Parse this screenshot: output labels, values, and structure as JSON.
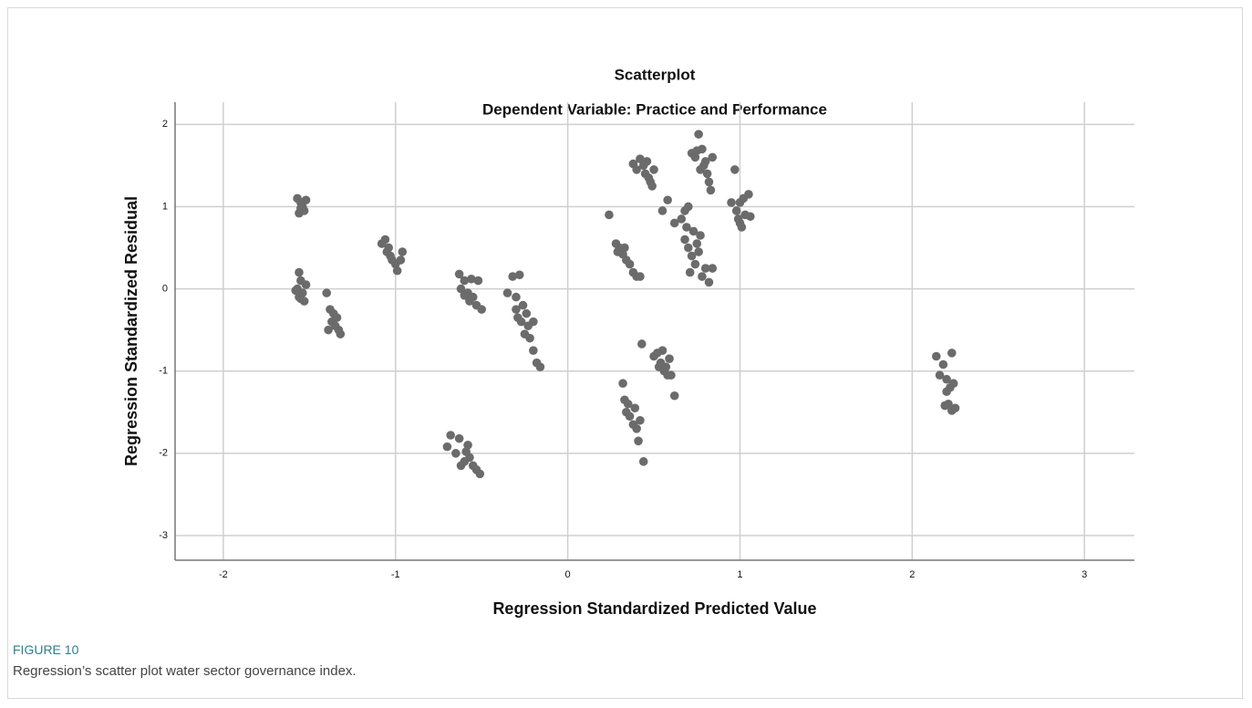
{
  "chart_data": {
    "type": "scatter",
    "title": "Scatterplot",
    "subtitle": "Dependent Variable: Practice and Performance",
    "xlabel": "Regression Standardized Predicted Value",
    "ylabel": "Regression Standardized Residual",
    "color": "#6b6b6b",
    "grid": true,
    "xlim": [
      -2.28,
      3.29
    ],
    "ylim": [
      -3.3,
      2.27
    ],
    "xticks": [
      -2,
      -1,
      0,
      1,
      2,
      3
    ],
    "yticks": [
      -3,
      -2,
      -1,
      0,
      1,
      2
    ],
    "x": [
      -1.57,
      -1.55,
      -1.54,
      -1.53,
      -1.56,
      -1.52,
      -1.55,
      -1.56,
      -1.55,
      -1.57,
      -1.54,
      -1.56,
      -1.53,
      -1.58,
      -1.52,
      -1.55,
      -1.4,
      -1.38,
      -1.36,
      -1.37,
      -1.35,
      -1.33,
      -1.32,
      -1.39,
      -1.34,
      -1.08,
      -1.06,
      -1.04,
      -1.03,
      -1.02,
      -1.0,
      -0.99,
      -0.97,
      -0.96,
      -1.05,
      -0.63,
      -0.6,
      -0.62,
      -0.58,
      -0.56,
      -0.55,
      -0.53,
      -0.52,
      -0.5,
      -0.57,
      -0.6,
      -0.35,
      -0.32,
      -0.3,
      -0.28,
      -0.3,
      -0.27,
      -0.25,
      -0.23,
      -0.22,
      -0.2,
      -0.18,
      -0.16,
      -0.2,
      -0.26,
      -0.29,
      -0.24,
      -0.7,
      -0.68,
      -0.65,
      -0.63,
      -0.6,
      -0.58,
      -0.57,
      -0.55,
      -0.53,
      -0.51,
      -0.62,
      -0.59,
      0.24,
      0.28,
      0.3,
      0.32,
      0.34,
      0.36,
      0.38,
      0.4,
      0.42,
      0.29,
      0.33,
      0.38,
      0.4,
      0.42,
      0.44,
      0.45,
      0.47,
      0.48,
      0.49,
      0.5,
      0.46,
      0.55,
      0.58,
      0.62,
      0.66,
      0.68,
      0.7,
      0.68,
      0.7,
      0.72,
      0.74,
      0.73,
      0.75,
      0.76,
      0.71,
      0.78,
      0.8,
      0.82,
      0.84,
      0.69,
      0.77,
      0.72,
      0.74,
      0.76,
      0.78,
      0.79,
      0.8,
      0.81,
      0.82,
      0.83,
      0.84,
      0.77,
      0.75,
      0.97,
      0.95,
      0.98,
      0.99,
      1.0,
      1.01,
      1.02,
      1.03,
      1.05,
      1.06,
      1.0,
      0.32,
      0.33,
      0.34,
      0.36,
      0.38,
      0.39,
      0.4,
      0.41,
      0.42,
      0.44,
      0.43,
      0.35,
      0.5,
      0.52,
      0.54,
      0.55,
      0.56,
      0.57,
      0.58,
      0.59,
      0.6,
      0.62,
      0.53,
      2.14,
      2.16,
      2.18,
      2.2,
      2.2,
      2.21,
      2.22,
      2.23,
      2.23,
      2.24,
      2.25,
      2.19
    ],
    "values": [
      1.1,
      1.05,
      1.0,
      0.95,
      0.92,
      1.08,
      0.98,
      0.2,
      0.1,
      0.0,
      -0.05,
      -0.1,
      -0.15,
      -0.02,
      0.05,
      -0.12,
      -0.05,
      -0.25,
      -0.3,
      -0.4,
      -0.45,
      -0.5,
      -0.55,
      -0.5,
      -0.35,
      0.55,
      0.6,
      0.5,
      0.4,
      0.35,
      0.3,
      0.22,
      0.35,
      0.45,
      0.45,
      0.18,
      0.1,
      0.0,
      -0.05,
      0.12,
      -0.1,
      -0.2,
      0.1,
      -0.25,
      -0.15,
      -0.08,
      -0.05,
      0.15,
      -0.1,
      0.17,
      -0.25,
      -0.4,
      -0.55,
      -0.45,
      -0.6,
      -0.75,
      -0.9,
      -0.95,
      -0.4,
      -0.2,
      -0.35,
      -0.3,
      -1.92,
      -1.78,
      -2.0,
      -1.82,
      -2.1,
      -1.9,
      -2.05,
      -2.15,
      -2.2,
      -2.25,
      -2.15,
      -1.98,
      0.9,
      0.55,
      0.5,
      0.42,
      0.35,
      0.3,
      0.2,
      0.15,
      0.15,
      0.45,
      0.5,
      1.52,
      1.45,
      1.58,
      1.5,
      1.4,
      1.35,
      1.3,
      1.25,
      1.45,
      1.55,
      0.95,
      1.08,
      0.8,
      0.85,
      0.95,
      1.0,
      0.6,
      0.5,
      0.4,
      0.3,
      0.7,
      0.55,
      0.45,
      0.2,
      0.15,
      0.25,
      0.08,
      0.25,
      0.75,
      0.65,
      1.65,
      1.6,
      1.88,
      1.7,
      1.5,
      1.55,
      1.4,
      1.3,
      1.2,
      1.6,
      1.45,
      1.68,
      1.45,
      1.05,
      0.95,
      0.85,
      0.8,
      0.75,
      1.1,
      0.9,
      1.15,
      0.88,
      1.05,
      -1.15,
      -1.35,
      -1.5,
      -1.55,
      -1.65,
      -1.45,
      -1.7,
      -1.85,
      -1.6,
      -2.1,
      -0.67,
      -1.4,
      -0.82,
      -0.78,
      -0.9,
      -0.75,
      -1.0,
      -0.95,
      -1.05,
      -0.85,
      -1.05,
      -1.3,
      -0.95,
      -0.82,
      -1.05,
      -0.92,
      -1.1,
      -1.25,
      -1.4,
      -1.2,
      -0.78,
      -1.48,
      -1.15,
      -1.45,
      -1.42
    ]
  },
  "caption": {
    "label": "FIGURE 10",
    "text": "Regression’s scatter plot water sector governance index."
  }
}
